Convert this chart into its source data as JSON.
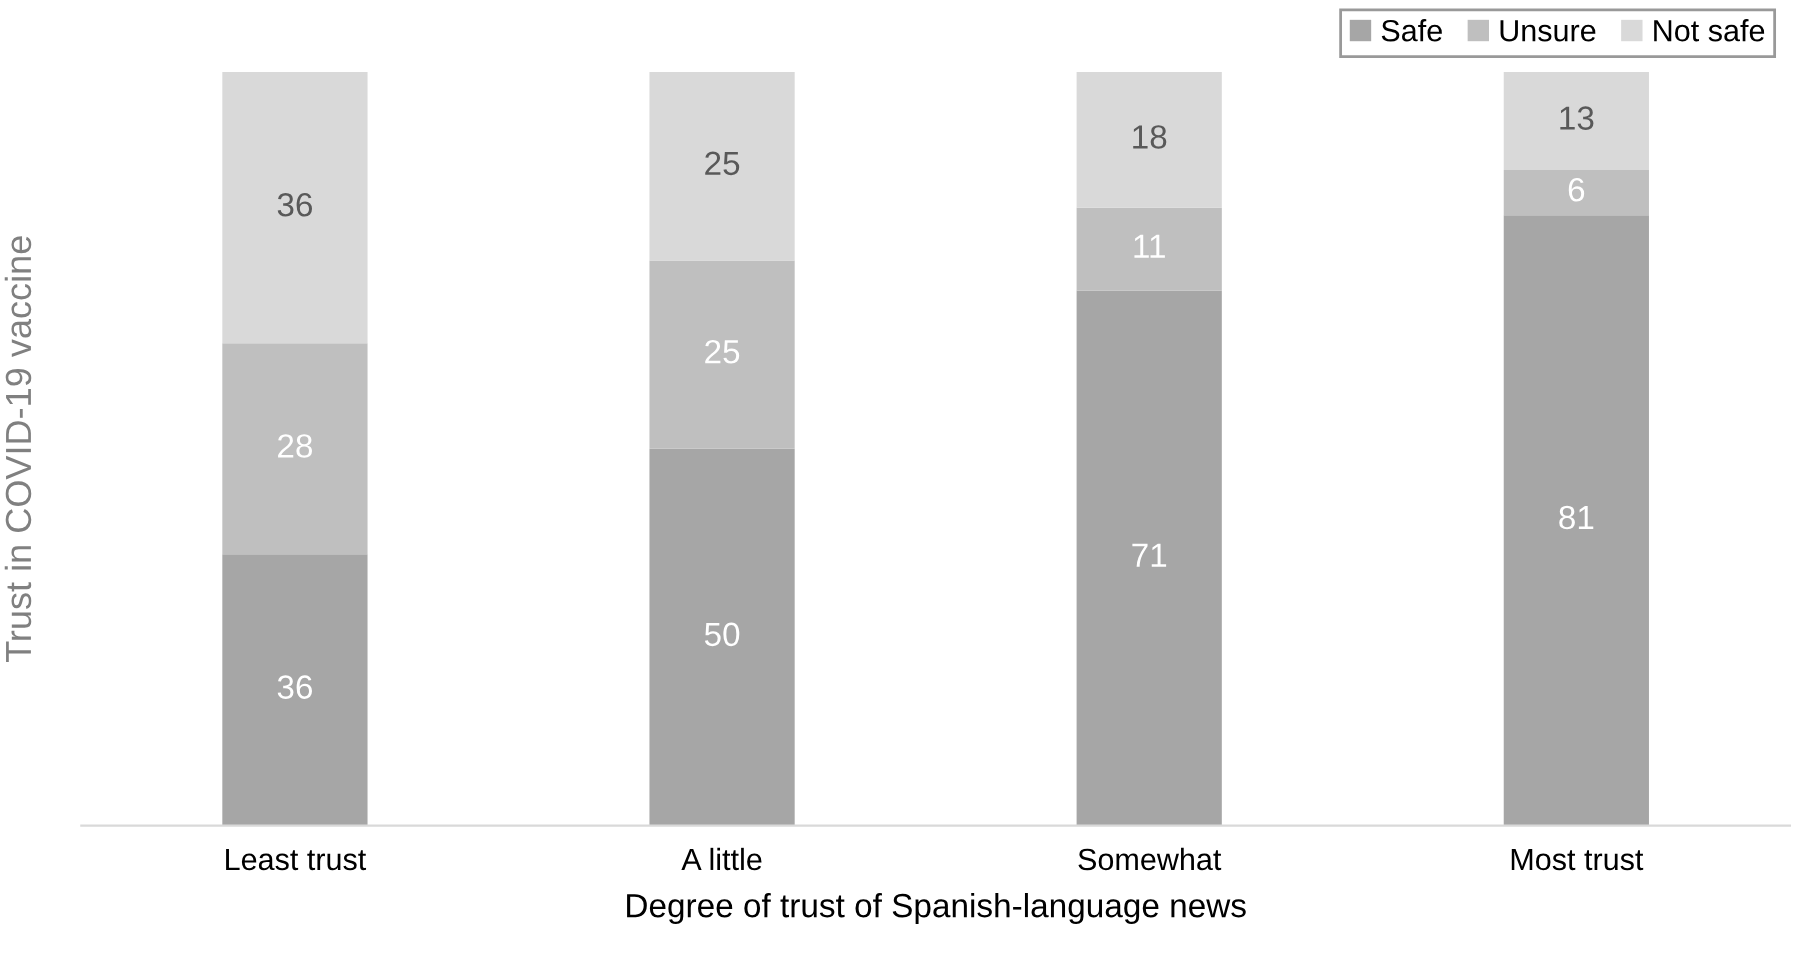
{
  "chart_data": {
    "type": "bar",
    "stacked": true,
    "xlabel": "Degree of trust of Spanish-language news",
    "ylabel": "Trust in COVID-19 vaccine",
    "categories": [
      "Least trust",
      "A little",
      "Somewhat",
      "Most trust"
    ],
    "series": [
      {
        "name": "Safe",
        "color": "#a6a6a6",
        "values": [
          36,
          50,
          71,
          81
        ]
      },
      {
        "name": "Unsure",
        "color": "#bfbfbf",
        "values": [
          28,
          25,
          11,
          6
        ]
      },
      {
        "name": "Not safe",
        "color": "#d9d9d9",
        "values": [
          36,
          25,
          18,
          13
        ]
      }
    ],
    "ylim": [
      0,
      100
    ],
    "data_labels": true,
    "legend": "top right"
  }
}
